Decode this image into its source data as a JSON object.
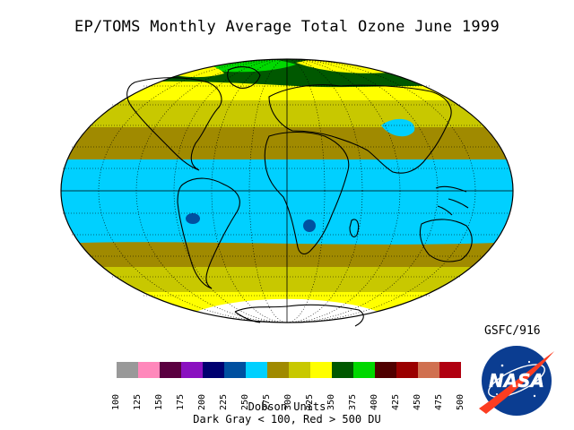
{
  "title": "EP/TOMS Monthly Average Total Ozone June 1999",
  "organization": "GSFC/916",
  "legend": {
    "unit_label": "Dobson Units",
    "note": "Dark Gray < 100, Red > 500 DU",
    "ticks": [
      "100",
      "125",
      "150",
      "175",
      "200",
      "225",
      "250",
      "275",
      "300",
      "325",
      "350",
      "375",
      "400",
      "425",
      "450",
      "475",
      "500"
    ],
    "colors": [
      "#999999",
      "#ff88bb",
      "#5a0040",
      "#8a10c0",
      "#000070",
      "#0050a0",
      "#00d0ff",
      "#a08a00",
      "#c8c800",
      "#ffff00",
      "#005800",
      "#00d800",
      "#500000",
      "#9a0000",
      "#d07050",
      "#b00010"
    ]
  },
  "map_colors": {
    "dark_green": "#005800",
    "green": "#00d800",
    "yellow": "#ffff00",
    "olive_yellow": "#c8c800",
    "olive": "#a08a00",
    "cyan": "#00d0ff",
    "blue": "#0050a0",
    "dark_red": "#500000",
    "red": "#9a0000",
    "antarctic_nodata": "#ffffff"
  },
  "logo": {
    "text": "NASA",
    "name": "nasa-meatball-logo"
  }
}
